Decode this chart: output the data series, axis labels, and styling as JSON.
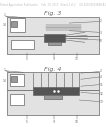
{
  "background_color": "#ffffff",
  "header_color": "#bbbbbb",
  "line_color": "#666666",
  "dark_fill": "#555555",
  "gray_fill": "#c8c8c8",
  "white_fill": "#ffffff",
  "mid_fill": "#999999",
  "light_gray": "#e2e2e2",
  "fig3_label": "Fig. 3",
  "fig4_label": "Fig. 4",
  "header_text": "Patent Application Publication     Feb. 10, 2010   Sheet 2 of 2     US 2010/0033888 A1"
}
